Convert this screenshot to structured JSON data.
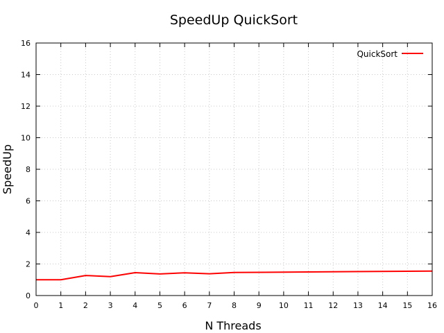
{
  "chart_data": {
    "type": "line",
    "title": "SpeedUp QuickSort",
    "xlabel": "N Threads",
    "ylabel": "SpeedUp",
    "xlim": [
      0,
      16
    ],
    "ylim": [
      0,
      16
    ],
    "x_ticks": [
      0,
      1,
      2,
      3,
      4,
      5,
      6,
      7,
      8,
      9,
      10,
      11,
      12,
      13,
      14,
      15,
      16
    ],
    "y_ticks": [
      0,
      2,
      4,
      6,
      8,
      10,
      12,
      14,
      16
    ],
    "grid": true,
    "legend_position": "top-right",
    "series": [
      {
        "name": "QuickSort",
        "color": "#ff0000",
        "x": [
          0,
          1,
          2,
          3,
          4,
          5,
          6,
          7,
          8,
          16
        ],
        "y": [
          1.0,
          1.0,
          1.27,
          1.2,
          1.45,
          1.37,
          1.44,
          1.38,
          1.46,
          1.55
        ]
      }
    ]
  }
}
